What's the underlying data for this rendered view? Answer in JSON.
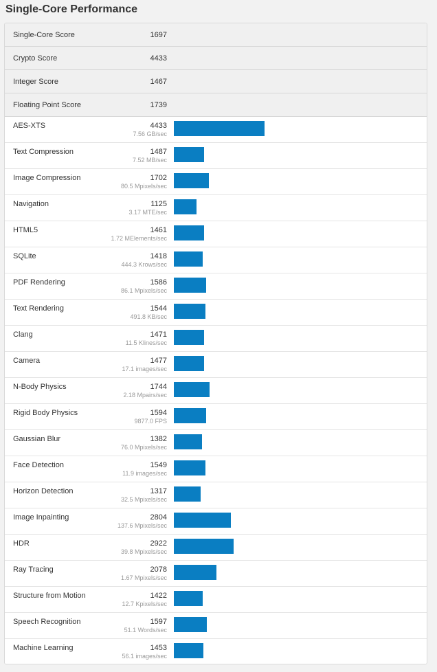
{
  "title": "Single-Core Performance",
  "bar_color": "#0a7ec2",
  "bar_max_score": 4433,
  "summary": [
    {
      "name": "Single-Core Score",
      "value": "1697"
    },
    {
      "name": "Crypto Score",
      "value": "4433"
    },
    {
      "name": "Integer Score",
      "value": "1467"
    },
    {
      "name": "Floating Point Score",
      "value": "1739"
    }
  ],
  "benchmarks": [
    {
      "name": "AES-XTS",
      "score": "4433",
      "sub": "7.56 GB/sec"
    },
    {
      "name": "Text Compression",
      "score": "1487",
      "sub": "7.52 MB/sec"
    },
    {
      "name": "Image Compression",
      "score": "1702",
      "sub": "80.5 Mpixels/sec"
    },
    {
      "name": "Navigation",
      "score": "1125",
      "sub": "3.17 MTE/sec"
    },
    {
      "name": "HTML5",
      "score": "1461",
      "sub": "1.72 MElements/sec"
    },
    {
      "name": "SQLite",
      "score": "1418",
      "sub": "444.3 Krows/sec"
    },
    {
      "name": "PDF Rendering",
      "score": "1586",
      "sub": "86.1 Mpixels/sec"
    },
    {
      "name": "Text Rendering",
      "score": "1544",
      "sub": "491.8 KB/sec"
    },
    {
      "name": "Clang",
      "score": "1471",
      "sub": "11.5 Klines/sec"
    },
    {
      "name": "Camera",
      "score": "1477",
      "sub": "17.1 images/sec"
    },
    {
      "name": "N-Body Physics",
      "score": "1744",
      "sub": "2.18 Mpairs/sec"
    },
    {
      "name": "Rigid Body Physics",
      "score": "1594",
      "sub": "9877.0 FPS"
    },
    {
      "name": "Gaussian Blur",
      "score": "1382",
      "sub": "76.0 Mpixels/sec"
    },
    {
      "name": "Face Detection",
      "score": "1549",
      "sub": "11.9 images/sec"
    },
    {
      "name": "Horizon Detection",
      "score": "1317",
      "sub": "32.5 Mpixels/sec"
    },
    {
      "name": "Image Inpainting",
      "score": "2804",
      "sub": "137.6 Mpixels/sec"
    },
    {
      "name": "HDR",
      "score": "2922",
      "sub": "39.8 Mpixels/sec"
    },
    {
      "name": "Ray Tracing",
      "score": "2078",
      "sub": "1.67 Mpixels/sec"
    },
    {
      "name": "Structure from Motion",
      "score": "1422",
      "sub": "12.7 Kpixels/sec"
    },
    {
      "name": "Speech Recognition",
      "score": "1597",
      "sub": "51.1 Words/sec"
    },
    {
      "name": "Machine Learning",
      "score": "1453",
      "sub": "56.1 images/sec"
    }
  ]
}
